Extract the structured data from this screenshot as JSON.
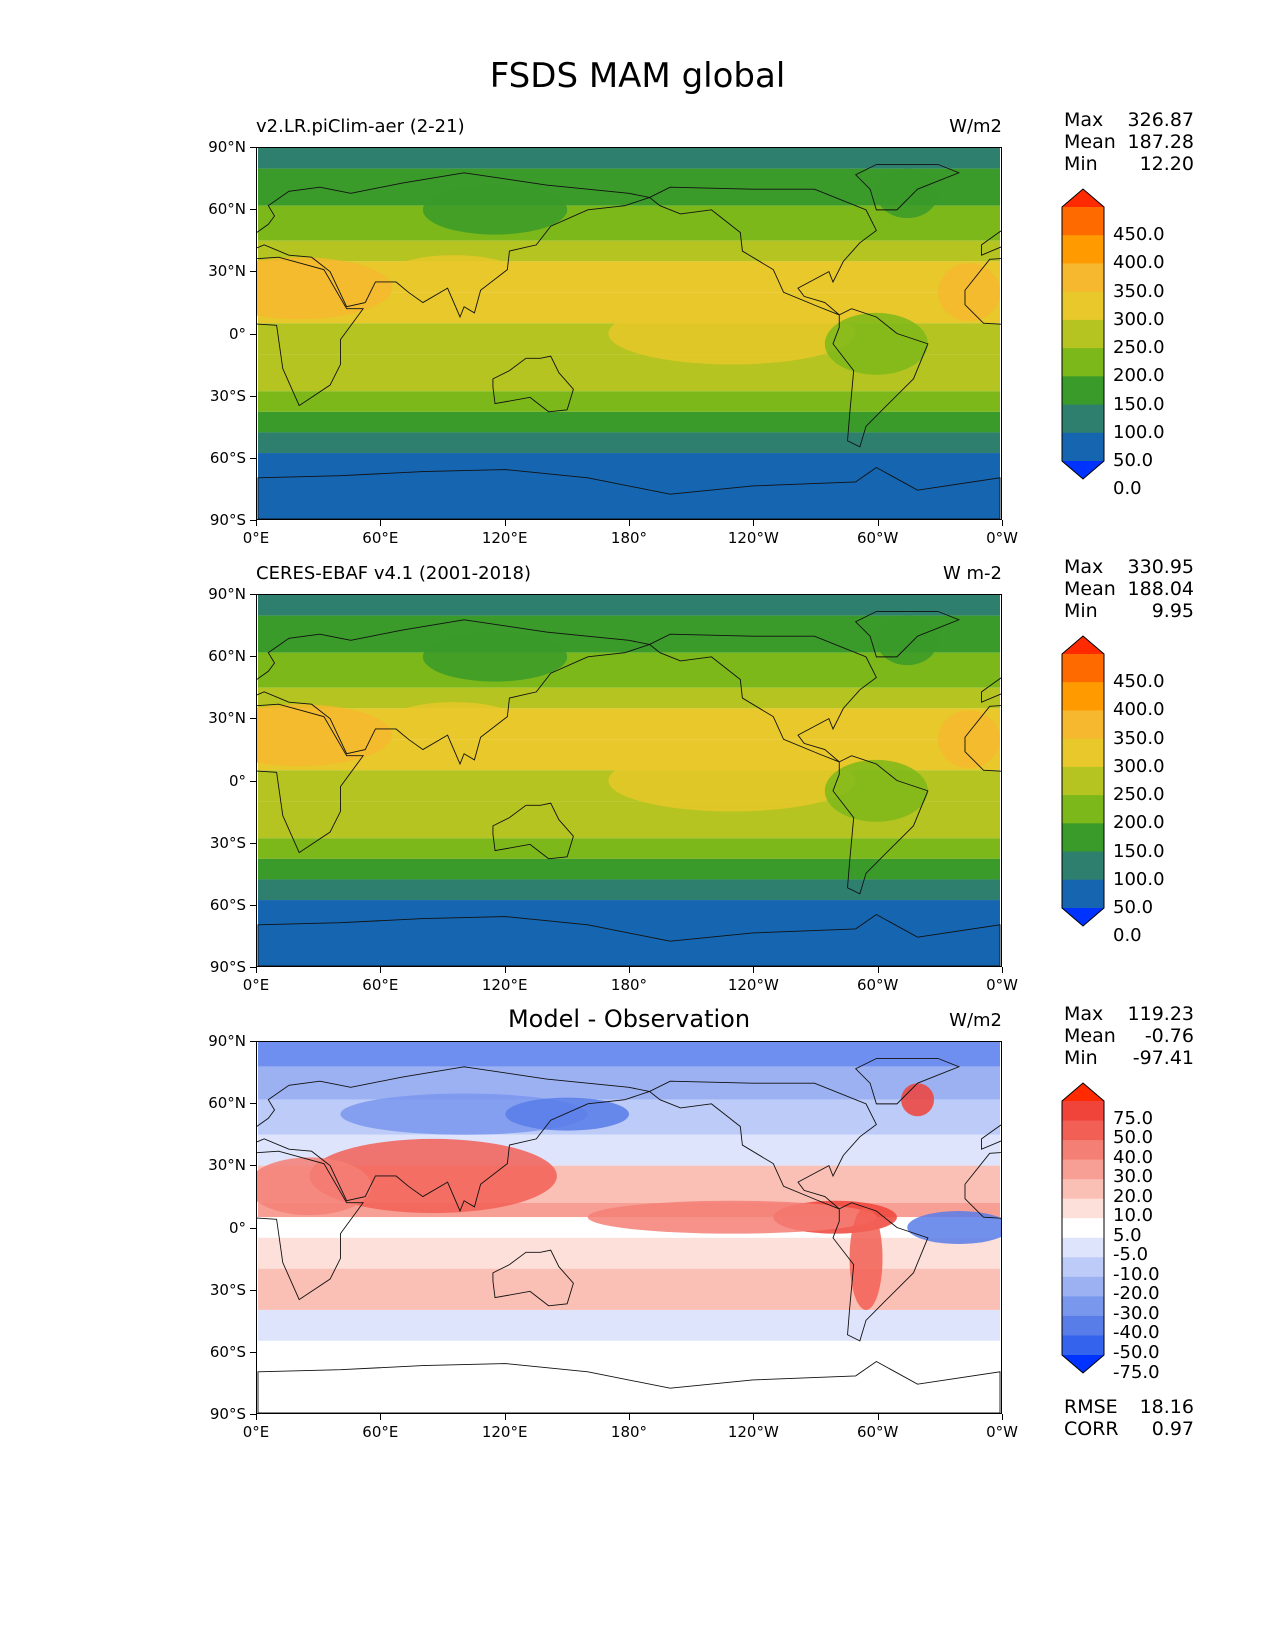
{
  "title": "FSDS MAM global",
  "lat_labels": [
    "90°N",
    "60°N",
    "30°N",
    "0°",
    "30°S",
    "60°S",
    "90°S"
  ],
  "lon_labels": [
    "0°E",
    "60°E",
    "120°E",
    "180°",
    "120°W",
    "60°W",
    "0°W"
  ],
  "panels": [
    {
      "name": "model",
      "title_left": "v2.LR.piClim-aer (2-21)",
      "title_center": "",
      "units": "W/m2",
      "stats": [
        {
          "label": "Max",
          "value": "326.87"
        },
        {
          "label": "Mean",
          "value": "187.28"
        },
        {
          "label": "Min",
          "value": "12.20"
        }
      ],
      "colorbar_labels": [
        "450.0",
        "400.0",
        "350.0",
        "300.0",
        "250.0",
        "200.0",
        "150.0",
        "100.0",
        "50.0",
        "0.0"
      ],
      "colorbar_colors": [
        "#ff2a00",
        "#ff6a00",
        "#ff9a00",
        "#f5b82e",
        "#e8c82a",
        "#b5c420",
        "#7db81a",
        "#3a9a2a",
        "#2e7f6e",
        "#1565b0",
        "#0033ff"
      ]
    },
    {
      "name": "observation",
      "title_left": "CERES-EBAF v4.1 (2001-2018)",
      "title_center": "",
      "units": "W m-2",
      "stats": [
        {
          "label": "Max",
          "value": "330.95"
        },
        {
          "label": "Mean",
          "value": "188.04"
        },
        {
          "label": "Min",
          "value": "9.95"
        }
      ],
      "colorbar_labels": [
        "450.0",
        "400.0",
        "350.0",
        "300.0",
        "250.0",
        "200.0",
        "150.0",
        "100.0",
        "50.0",
        "0.0"
      ],
      "colorbar_colors": [
        "#ff2a00",
        "#ff6a00",
        "#ff9a00",
        "#f5b82e",
        "#e8c82a",
        "#b5c420",
        "#7db81a",
        "#3a9a2a",
        "#2e7f6e",
        "#1565b0",
        "#0033ff"
      ]
    },
    {
      "name": "difference",
      "title_left": "",
      "title_center": "Model - Observation",
      "units": "W/m2",
      "stats": [
        {
          "label": "Max",
          "value": "119.23"
        },
        {
          "label": "Mean",
          "value": "-0.76"
        },
        {
          "label": "Min",
          "value": "-97.41"
        }
      ],
      "colorbar_labels": [
        "75.0",
        "50.0",
        "40.0",
        "30.0",
        "20.0",
        "10.0",
        "5.0",
        "-5.0",
        "-10.0",
        "-20.0",
        "-30.0",
        "-40.0",
        "-50.0",
        "-75.0"
      ],
      "colorbar_colors": [
        "#ff2a00",
        "#f0433a",
        "#f25f55",
        "#f47f75",
        "#f79f95",
        "#fabfb5",
        "#fde0da",
        "#ffffff",
        "#dde4fb",
        "#bccbf7",
        "#9bb1f2",
        "#7a97ee",
        "#587de9",
        "#3463ee",
        "#0033ff"
      ],
      "metrics": [
        {
          "label": "RMSE",
          "value": "18.16"
        },
        {
          "label": "CORR",
          "value": "0.97"
        }
      ]
    }
  ]
}
